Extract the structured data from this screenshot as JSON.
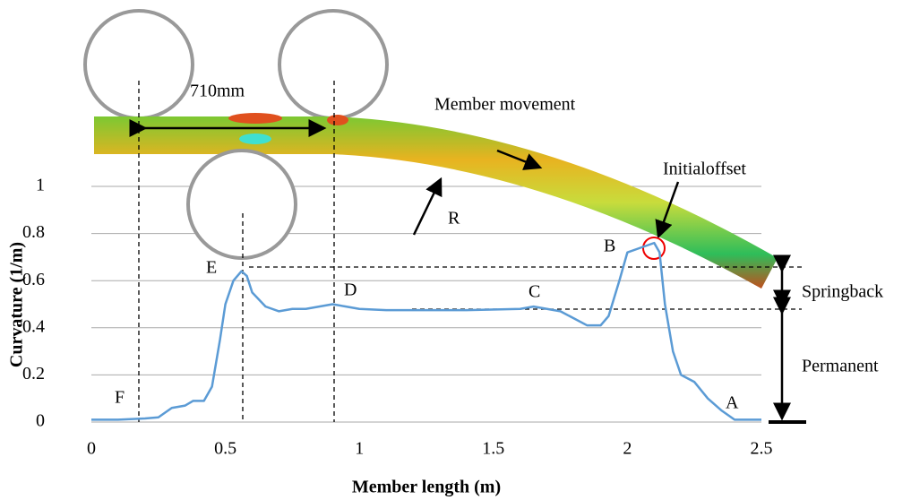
{
  "chart_data": {
    "type": "line",
    "y_label": "Curvature (1/m)",
    "x_label": "Member length (m)",
    "xlim": [
      0,
      2.5
    ],
    "xticks": [
      0,
      0.5,
      1,
      1.5,
      2,
      2.5
    ],
    "ylim": [
      0,
      1
    ],
    "yticks": [
      0,
      0.2,
      0.4,
      0.6,
      0.8,
      1
    ],
    "grid": true,
    "series": [
      {
        "color": "#5b9bd5",
        "x": [
          0,
          0.1,
          0.2,
          0.25,
          0.3,
          0.35,
          0.38,
          0.42,
          0.45,
          0.48,
          0.5,
          0.53,
          0.56,
          0.58,
          0.6,
          0.65,
          0.7,
          0.75,
          0.8,
          0.85,
          0.9,
          0.95,
          1.0,
          1.1,
          1.2,
          1.4,
          1.6,
          1.65,
          1.75,
          1.8,
          1.85,
          1.9,
          1.93,
          1.97,
          2.0,
          2.05,
          2.1,
          2.12,
          2.14,
          2.17,
          2.2,
          2.25,
          2.3,
          2.35,
          2.4,
          2.5
        ],
        "values": [
          0.01,
          0.01,
          0.015,
          0.02,
          0.06,
          0.07,
          0.09,
          0.09,
          0.15,
          0.35,
          0.5,
          0.6,
          0.64,
          0.62,
          0.55,
          0.49,
          0.47,
          0.48,
          0.48,
          0.49,
          0.5,
          0.49,
          0.48,
          0.475,
          0.475,
          0.475,
          0.48,
          0.49,
          0.47,
          0.44,
          0.41,
          0.41,
          0.45,
          0.6,
          0.72,
          0.74,
          0.76,
          0.72,
          0.5,
          0.3,
          0.2,
          0.17,
          0.1,
          0.05,
          0.01,
          0.01
        ]
      }
    ],
    "annotations": [
      "710mm",
      "Member movement",
      "R",
      "Initialoffset",
      "Springback",
      "Permanent",
      "A",
      "B",
      "C",
      "D",
      "E",
      "F"
    ]
  }
}
